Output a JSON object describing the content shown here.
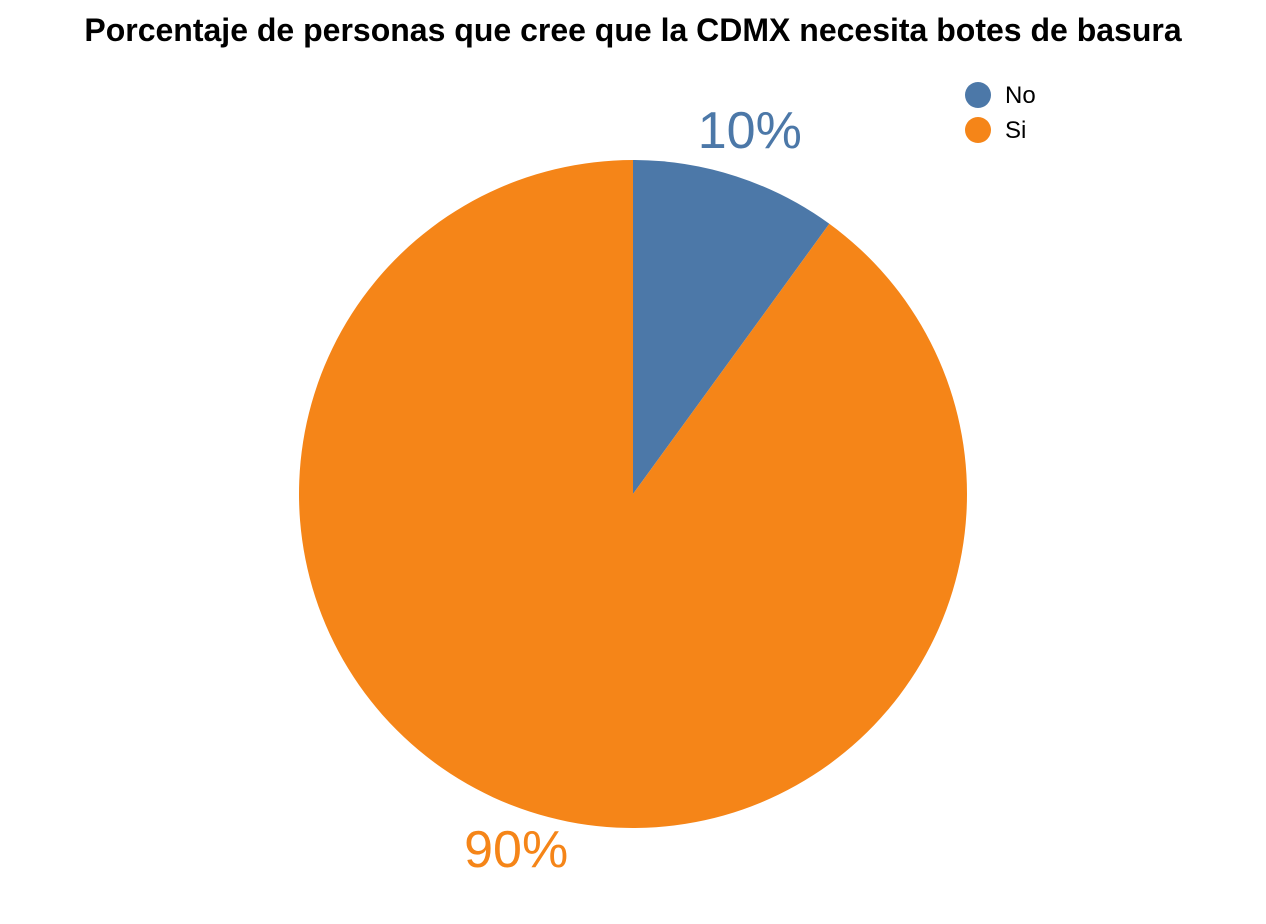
{
  "chart_data": {
    "type": "pie",
    "title": "Porcentaje de personas que cree que la CDMX necesita botes de basura",
    "categories": [
      "No",
      "Si"
    ],
    "values": [
      10,
      90
    ],
    "labels": [
      "10%",
      "90%"
    ],
    "colors": [
      "#4c78a8",
      "#f58518"
    ],
    "legend": {
      "placement": "top-right",
      "entries": [
        "No",
        "Si"
      ]
    },
    "start_angle_deg": 0,
    "direction": "clockwise"
  }
}
